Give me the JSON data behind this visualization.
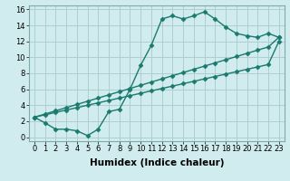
{
  "background_color": "#d0ecee",
  "grid_color": "#b0cdd0",
  "line_color": "#1a7a6e",
  "xlabel": "Humidex (Indice chaleur)",
  "xlim": [
    -0.5,
    23.5
  ],
  "ylim": [
    -0.5,
    16.5
  ],
  "xticks": [
    0,
    1,
    2,
    3,
    4,
    5,
    6,
    7,
    8,
    9,
    10,
    11,
    12,
    13,
    14,
    15,
    16,
    17,
    18,
    19,
    20,
    21,
    22,
    23
  ],
  "yticks": [
    0,
    2,
    4,
    6,
    8,
    10,
    12,
    14,
    16
  ],
  "line1_x": [
    0,
    1,
    2,
    3,
    4,
    5,
    6,
    7,
    8,
    9,
    10,
    11,
    12,
    13,
    14,
    15,
    16,
    17,
    18,
    19,
    20,
    21,
    22,
    23
  ],
  "line1_y": [
    2.5,
    1.8,
    1.0,
    1.0,
    0.8,
    0.2,
    1.0,
    3.2,
    3.5,
    6.0,
    9.0,
    11.5,
    14.8,
    15.2,
    14.8,
    15.2,
    15.7,
    14.8,
    13.8,
    13.0,
    12.7,
    12.5,
    13.0,
    12.5
  ],
  "line2_x": [
    0,
    1,
    2,
    3,
    4,
    5,
    6,
    7,
    8,
    9,
    10,
    11,
    12,
    13,
    14,
    15,
    16,
    17,
    18,
    19,
    20,
    21,
    22,
    23
  ],
  "line2_y": [
    2.5,
    2.9,
    3.3,
    3.7,
    4.1,
    4.5,
    4.9,
    5.3,
    5.7,
    6.1,
    6.5,
    6.9,
    7.3,
    7.7,
    8.1,
    8.5,
    8.9,
    9.3,
    9.7,
    10.1,
    10.5,
    10.9,
    11.3,
    12.5
  ],
  "line3_x": [
    0,
    1,
    2,
    3,
    4,
    5,
    6,
    7,
    8,
    9,
    10,
    11,
    12,
    13,
    14,
    15,
    16,
    17,
    18,
    19,
    20,
    21,
    22,
    23
  ],
  "line3_y": [
    2.5,
    2.8,
    3.1,
    3.4,
    3.7,
    4.0,
    4.3,
    4.6,
    4.9,
    5.2,
    5.5,
    5.8,
    6.1,
    6.4,
    6.7,
    7.0,
    7.3,
    7.6,
    7.9,
    8.2,
    8.5,
    8.8,
    9.1,
    12.0
  ],
  "marker": "D",
  "marker_size": 2.5,
  "line_width": 1.0,
  "tick_fontsize": 6.0,
  "xlabel_fontsize": 7.5
}
